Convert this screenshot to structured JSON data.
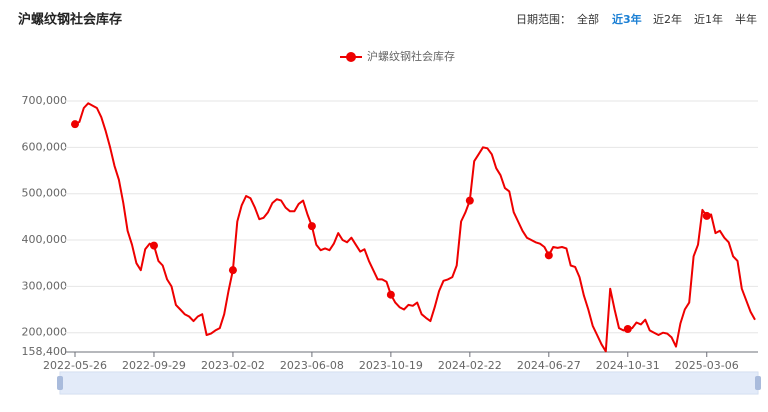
{
  "chart_data": {
    "type": "line",
    "title": "沪螺纹钢社会库存",
    "controls": {
      "label": "日期范围：",
      "options": [
        "全部",
        "近3年",
        "近2年",
        "近1年",
        "半年"
      ],
      "active_index": 1
    },
    "categories": [
      "2022-05-26",
      null,
      null,
      null,
      null,
      null,
      null,
      null,
      null,
      null,
      null,
      null,
      null,
      null,
      null,
      null,
      null,
      null,
      "2022-09-29",
      null,
      null,
      null,
      null,
      null,
      null,
      null,
      null,
      null,
      null,
      null,
      null,
      null,
      null,
      null,
      null,
      null,
      "2023-02-02",
      null,
      null,
      null,
      null,
      null,
      null,
      null,
      null,
      null,
      null,
      null,
      null,
      null,
      null,
      null,
      null,
      null,
      "2023-06-08",
      null,
      null,
      null,
      null,
      null,
      null,
      null,
      null,
      null,
      null,
      null,
      null,
      null,
      null,
      null,
      null,
      null,
      "2023-10-19",
      null,
      null,
      null,
      null,
      null,
      null,
      null,
      null,
      null,
      null,
      null,
      null,
      null,
      null,
      null,
      null,
      null,
      "2024-02-22",
      null,
      null,
      null,
      null,
      null,
      null,
      null,
      null,
      null,
      null,
      null,
      null,
      null,
      null,
      null,
      null,
      null,
      "2024-06-27",
      null,
      null,
      null,
      null,
      null,
      null,
      null,
      null,
      null,
      null,
      null,
      null,
      null,
      null,
      null,
      null,
      null,
      "2024-10-31",
      null,
      null,
      null,
      null,
      null,
      null,
      null,
      null,
      null,
      null,
      null,
      null,
      null,
      null,
      null,
      null,
      null,
      "2025-03-06",
      null,
      null,
      null,
      null,
      null,
      null,
      null,
      null,
      null,
      null,
      null
    ],
    "series": [
      {
        "name": "沪螺纹钢社会库存",
        "color": "#ee0000",
        "values": [
          650000,
          655000,
          685000,
          695000,
          690000,
          685000,
          665000,
          635000,
          600000,
          560000,
          530000,
          480000,
          420000,
          390000,
          350000,
          335000,
          380000,
          392000,
          388000,
          355000,
          345000,
          315000,
          300000,
          260000,
          250000,
          240000,
          235000,
          225000,
          235000,
          240000,
          195000,
          198000,
          205000,
          210000,
          240000,
          290000,
          335000,
          440000,
          475000,
          495000,
          490000,
          470000,
          445000,
          448000,
          460000,
          480000,
          488000,
          485000,
          470000,
          462000,
          462000,
          478000,
          485000,
          455000,
          430000,
          390000,
          378000,
          382000,
          378000,
          392000,
          415000,
          400000,
          395000,
          405000,
          390000,
          375000,
          380000,
          355000,
          335000,
          315000,
          315000,
          310000,
          282000,
          265000,
          255000,
          250000,
          260000,
          258000,
          265000,
          240000,
          232000,
          225000,
          255000,
          290000,
          312000,
          315000,
          320000,
          345000,
          440000,
          460000,
          485000,
          570000,
          585000,
          600000,
          598000,
          585000,
          555000,
          540000,
          512000,
          505000,
          460000,
          440000,
          420000,
          405000,
          400000,
          395000,
          392000,
          385000,
          367000,
          385000,
          383000,
          385000,
          382000,
          345000,
          342000,
          320000,
          280000,
          250000,
          215000,
          195000,
          175000,
          160000,
          295000,
          250000,
          210000,
          205000,
          208000,
          210000,
          222000,
          218000,
          228000,
          205000,
          200000,
          195000,
          200000,
          198000,
          190000,
          170000,
          220000,
          250000,
          265000,
          365000,
          390000,
          465000,
          452000,
          455000,
          415000,
          420000,
          405000,
          395000,
          365000,
          355000,
          295000,
          270000,
          245000,
          228000
        ]
      }
    ],
    "ylim": [
      158400,
      700000
    ],
    "yticks": [
      {
        "value": 158400,
        "label": "158,400"
      },
      {
        "value": 200000,
        "label": "200,000"
      },
      {
        "value": 300000,
        "label": "300,000"
      },
      {
        "value": 400000,
        "label": "400,000"
      },
      {
        "value": 500000,
        "label": "500,000"
      },
      {
        "value": 600000,
        "label": "600,000"
      },
      {
        "value": 700000,
        "label": "700,000"
      }
    ],
    "grid": true
  }
}
